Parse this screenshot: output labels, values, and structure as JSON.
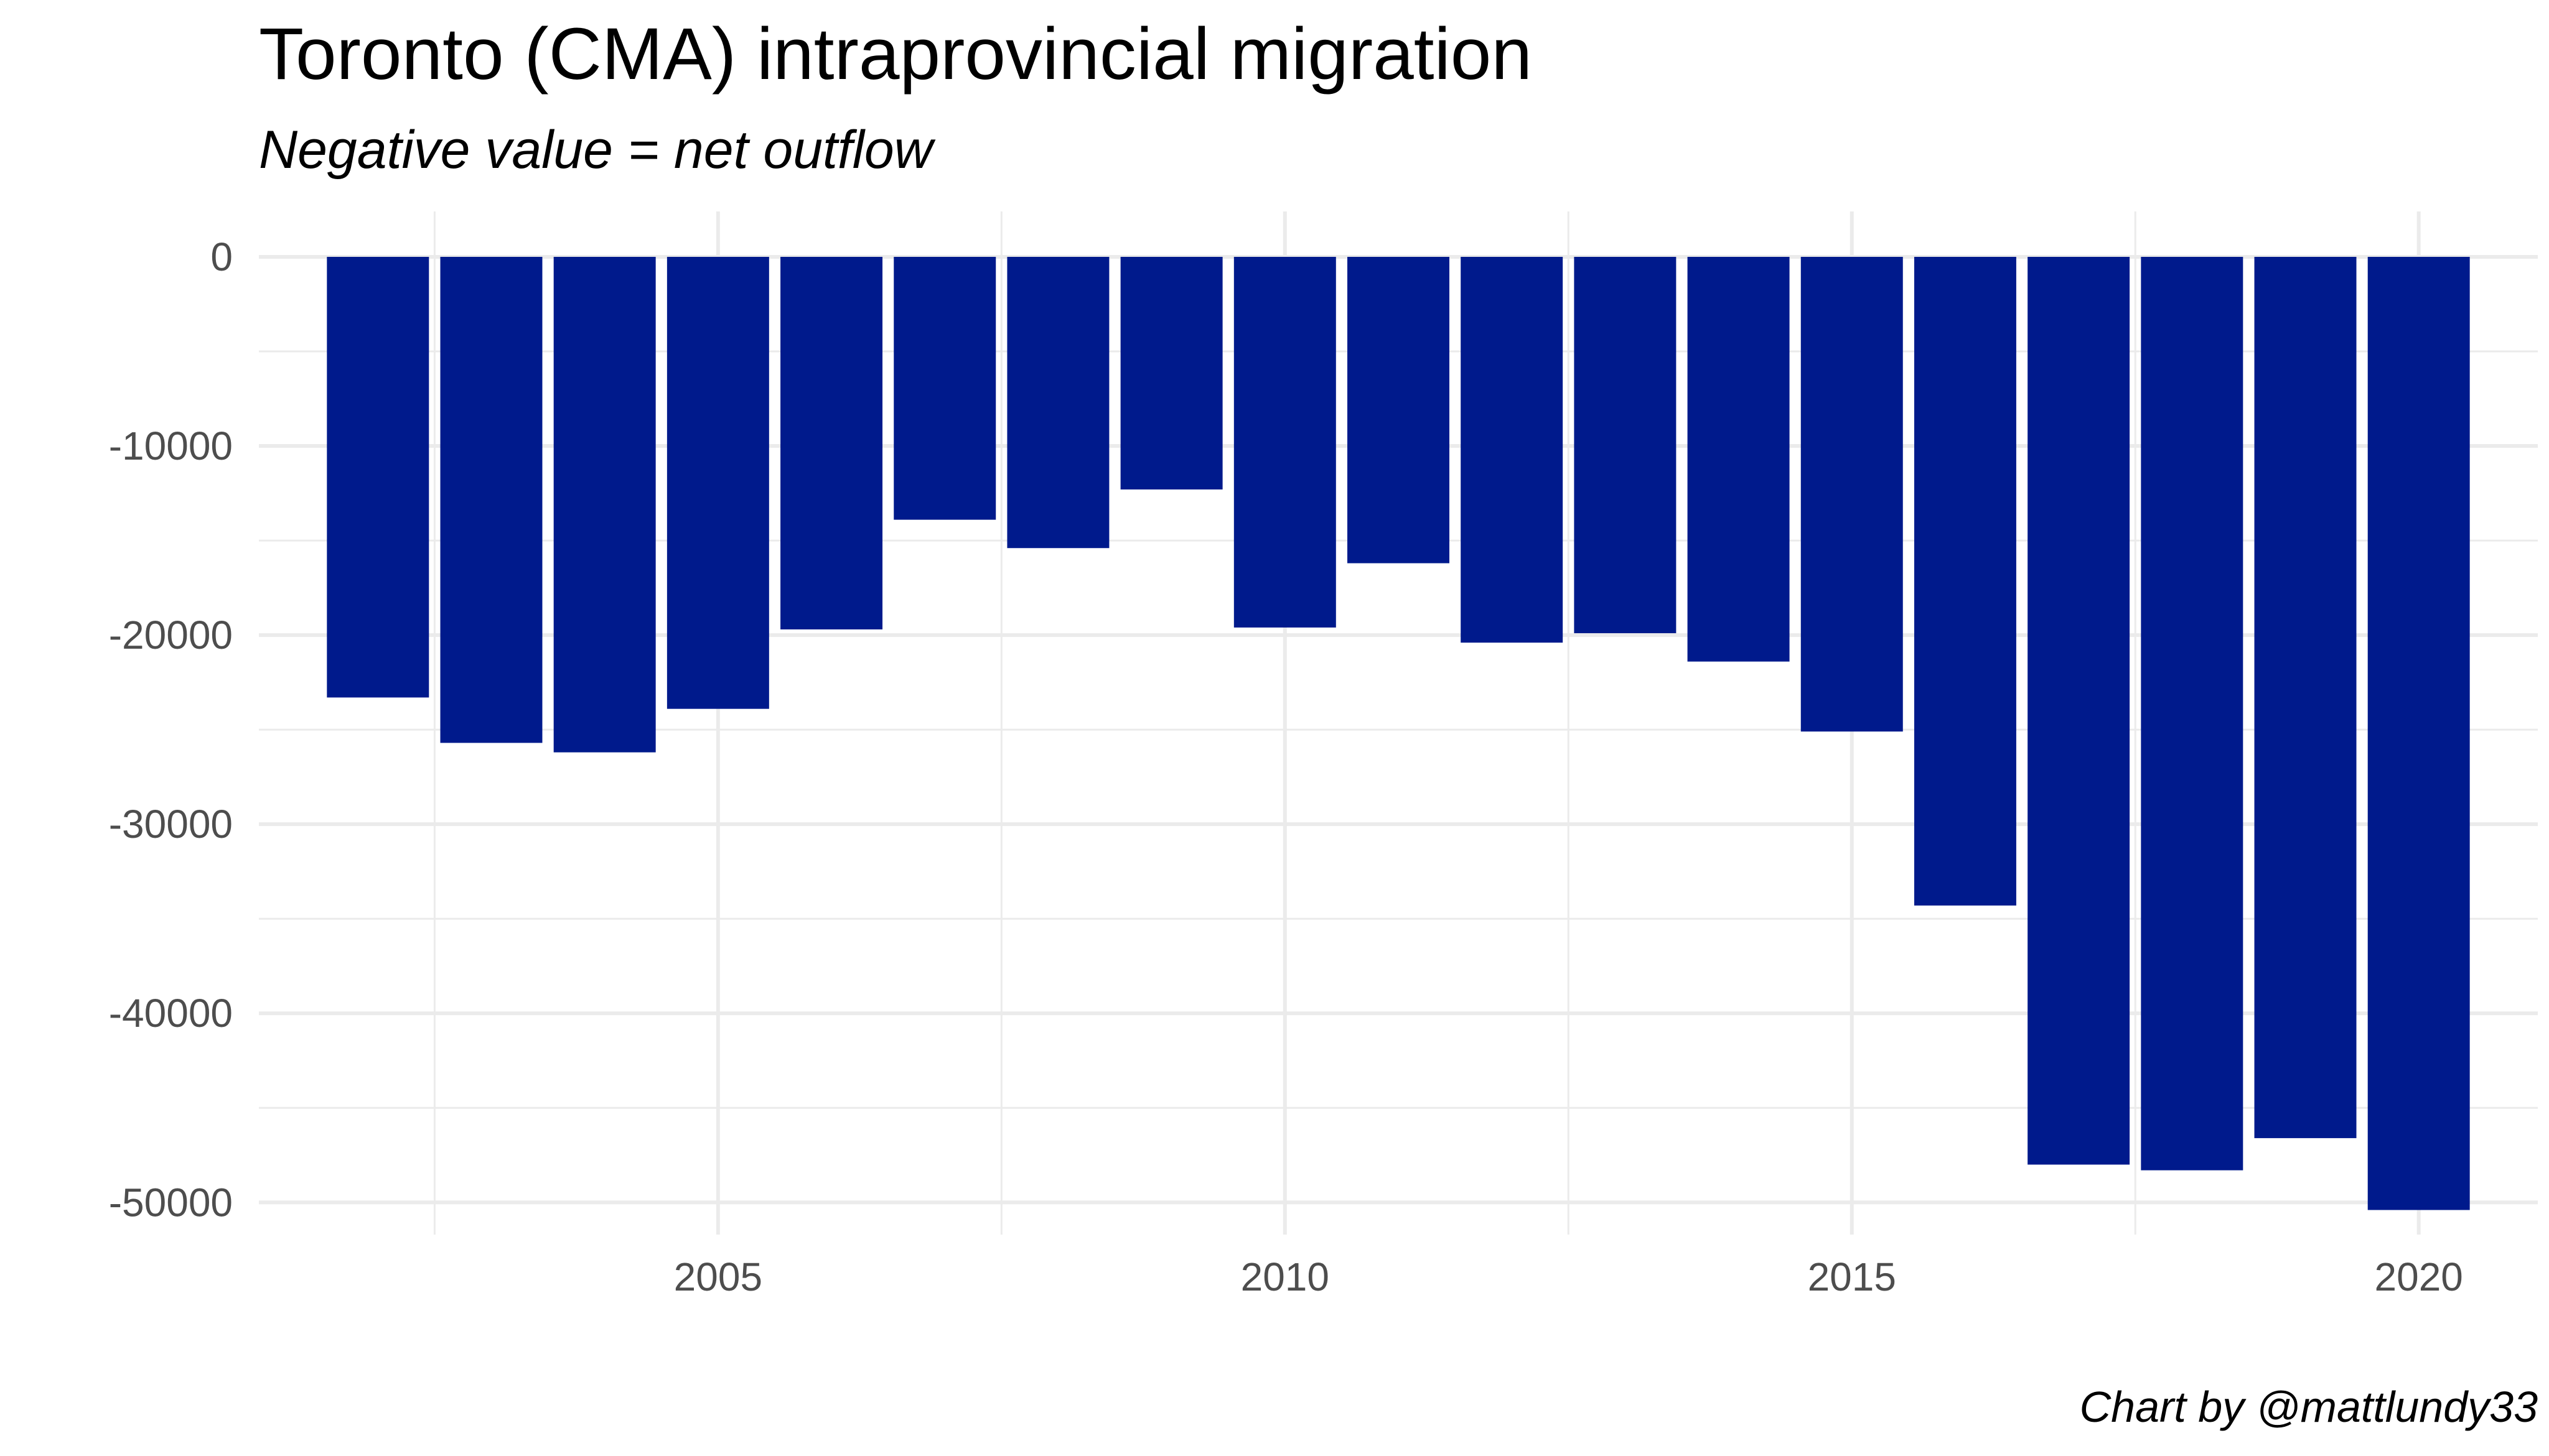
{
  "chart_data": {
    "type": "bar",
    "title": "Toronto (CMA) intraprovincial migration",
    "subtitle": "Negative value = net outflow",
    "caption": "Chart by @mattlundy33",
    "xlabel": "",
    "ylabel": "",
    "x": [
      2002,
      2003,
      2004,
      2005,
      2006,
      2007,
      2008,
      2009,
      2010,
      2011,
      2012,
      2013,
      2014,
      2015,
      2016,
      2017,
      2018,
      2019,
      2020
    ],
    "values": [
      -23300,
      -25700,
      -26200,
      -23900,
      -19700,
      -13900,
      -15400,
      -12300,
      -19600,
      -16200,
      -20400,
      -19900,
      -21400,
      -25100,
      -34300,
      -48000,
      -48300,
      -46600,
      -50400
    ],
    "x_ticks": [
      2005,
      2010,
      2015,
      2020
    ],
    "y_ticks": [
      0,
      -10000,
      -20000,
      -30000,
      -40000,
      -50000
    ],
    "xlim": [
      2000.95,
      2021.05
    ],
    "ylim": [
      -51700,
      2400
    ],
    "grid": true,
    "legend": "none",
    "bar_color": "#001a8c",
    "grid_color": "#ebebeb",
    "tick_label_color": "#4d4d4d"
  }
}
